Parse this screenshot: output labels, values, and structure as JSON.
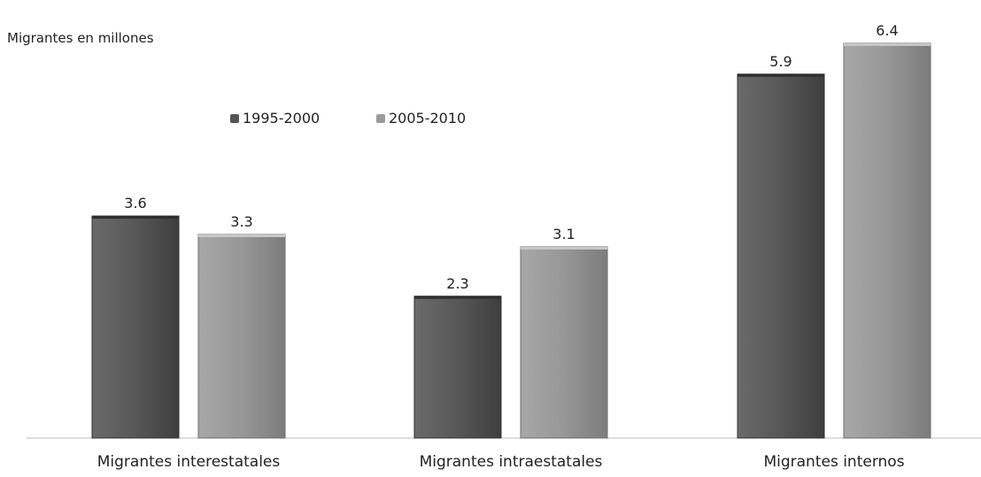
{
  "chart_data": {
    "type": "bar",
    "ylabel": "Migrantes en millones",
    "categories": [
      "Migrantes interestatales",
      "Migrantes intraestatales",
      "Migrantes internos"
    ],
    "series": [
      {
        "name": "1995-2000",
        "values": [
          3.6,
          2.3,
          5.9
        ],
        "data_labels": [
          "3.6",
          "2.3",
          "5.9"
        ],
        "color": "#555555"
      },
      {
        "name": "2005-2010",
        "values": [
          3.3,
          3.1,
          6.4
        ],
        "data_labels": [
          "3.3",
          "3.1",
          "6.4"
        ],
        "color": "#9a9a9a"
      }
    ],
    "ylim": [
      0,
      6.7
    ],
    "grid": false,
    "legend_position": "top-left",
    "value_labels": true
  }
}
